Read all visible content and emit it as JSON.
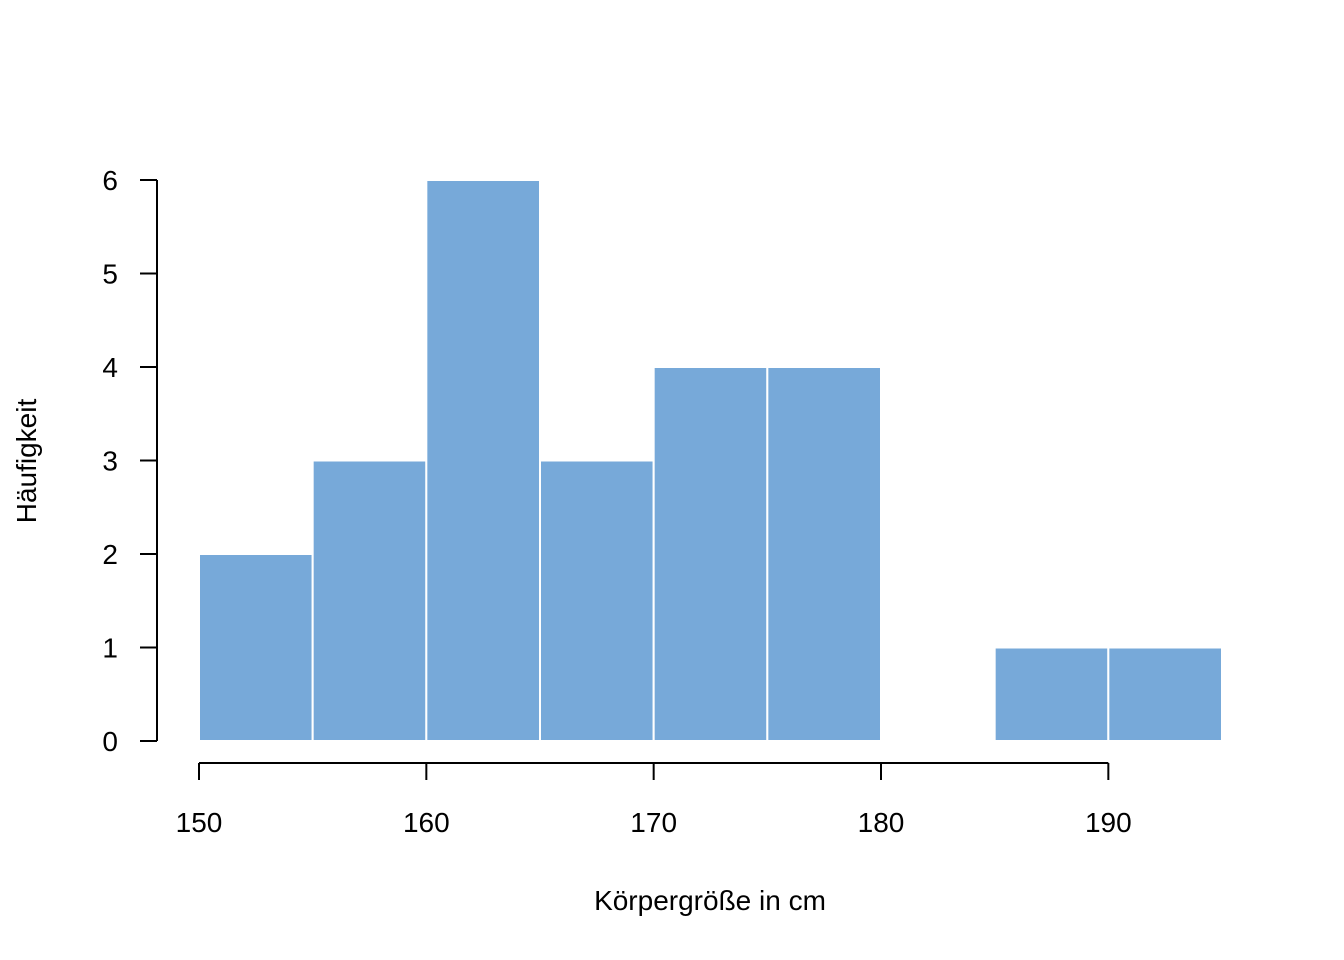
{
  "chart_data": {
    "type": "bar",
    "subtype": "histogram",
    "xlabel": "Körpergröße in cm",
    "ylabel": "Häufigkeit",
    "bins": [
      {
        "from": 150,
        "to": 155,
        "count": 2
      },
      {
        "from": 155,
        "to": 160,
        "count": 3
      },
      {
        "from": 160,
        "to": 165,
        "count": 6
      },
      {
        "from": 165,
        "to": 170,
        "count": 3
      },
      {
        "from": 170,
        "to": 175,
        "count": 4
      },
      {
        "from": 175,
        "to": 180,
        "count": 4
      },
      {
        "from": 180,
        "to": 185,
        "count": 0
      },
      {
        "from": 185,
        "to": 190,
        "count": 1
      },
      {
        "from": 190,
        "to": 195,
        "count": 1
      }
    ],
    "xticks": [
      "150",
      "160",
      "170",
      "180",
      "190"
    ],
    "yticks": [
      "0",
      "1",
      "2",
      "3",
      "4",
      "5",
      "6"
    ],
    "xlim": [
      150,
      195
    ],
    "ylim": [
      0,
      6
    ],
    "grid": false,
    "bar_color": "#77a9d9",
    "bar_edge_color": "#ffffff"
  }
}
